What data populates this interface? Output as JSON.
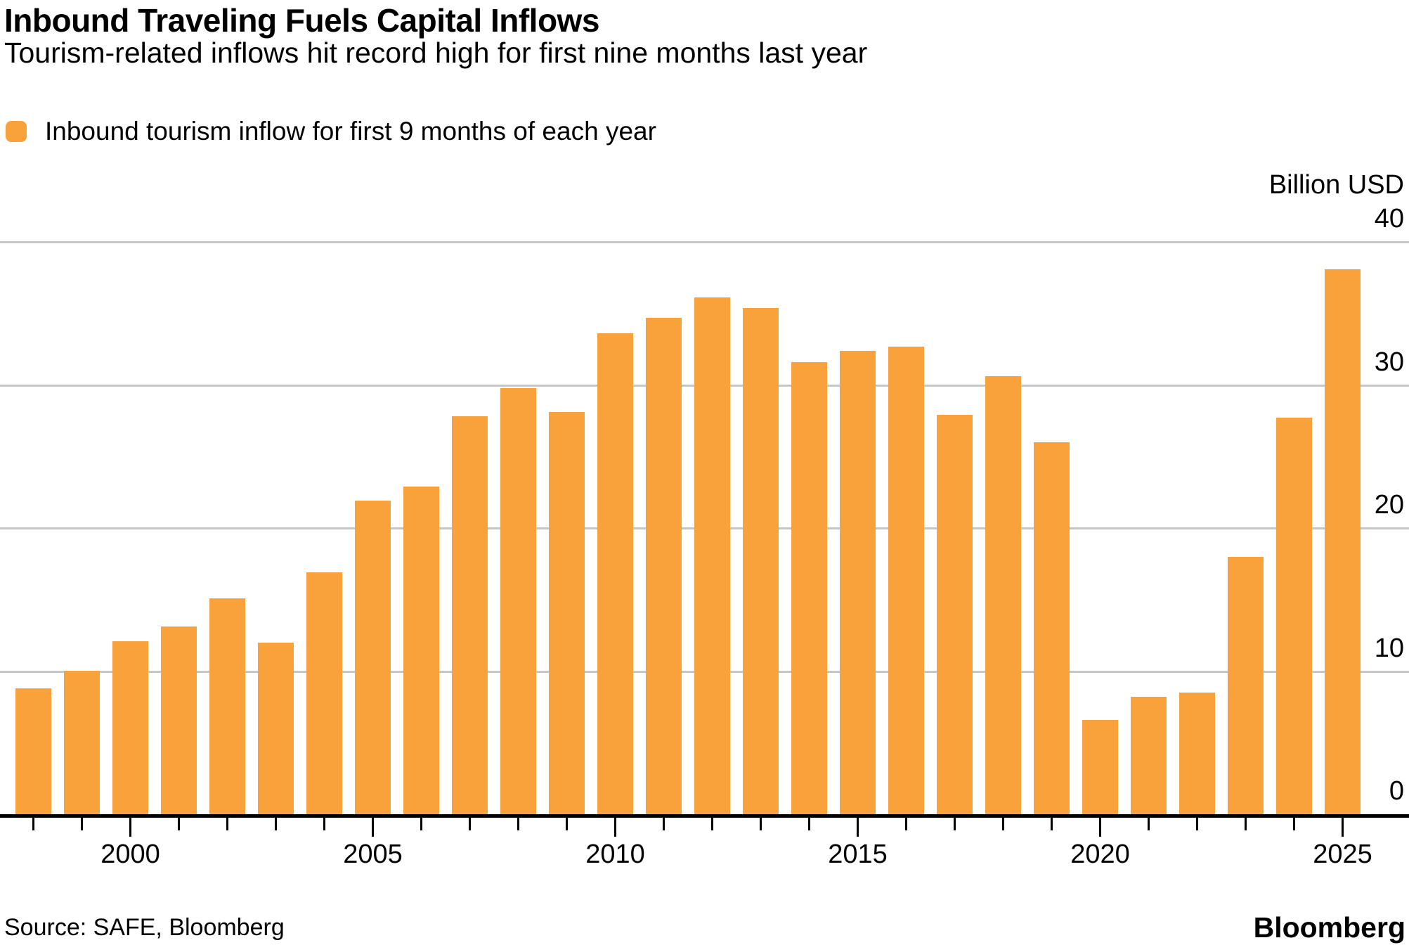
{
  "header": {
    "title": "Inbound Traveling Fuels Capital Inflows",
    "subtitle": "Tourism-related inflows hit record high for first nine months last year"
  },
  "legend": {
    "label": "Inbound tourism inflow for first 9 months of each year",
    "swatch_color": "#F9A23B"
  },
  "footer": {
    "source": "Source: SAFE, Bloomberg",
    "brand": "Bloomberg"
  },
  "chart_data": {
    "type": "bar",
    "title": "Inbound Traveling Fuels Capital Inflows",
    "subtitle": "Tourism-related inflows hit record high for first nine months last year",
    "unit_label": "Billion USD",
    "legend": [
      "Inbound tourism inflow for first 9 months of each year"
    ],
    "categories": [
      1998,
      1999,
      2000,
      2001,
      2002,
      2003,
      2004,
      2005,
      2006,
      2007,
      2008,
      2009,
      2010,
      2011,
      2012,
      2013,
      2014,
      2015,
      2016,
      2017,
      2018,
      2019,
      2020,
      2021,
      2022,
      2023,
      2024,
      2025
    ],
    "values": [
      8.8,
      10.0,
      12.1,
      13.1,
      15.1,
      12.0,
      16.9,
      21.9,
      22.9,
      27.8,
      29.8,
      28.1,
      33.6,
      34.7,
      36.1,
      35.4,
      31.6,
      32.4,
      32.7,
      27.9,
      30.6,
      26.0,
      6.6,
      8.2,
      8.5,
      18.0,
      27.7,
      38.1
    ],
    "ylim": [
      0,
      40
    ],
    "yticks": [
      0,
      10,
      20,
      30,
      40
    ],
    "xticks_labeled": [
      2000,
      2005,
      2010,
      2015,
      2020,
      2025
    ],
    "grid": "horizontal",
    "legend_position": "top-left",
    "bar_color": "#F9A23B",
    "gridline_color": "#C6C6C6",
    "axis_color": "#000000"
  }
}
